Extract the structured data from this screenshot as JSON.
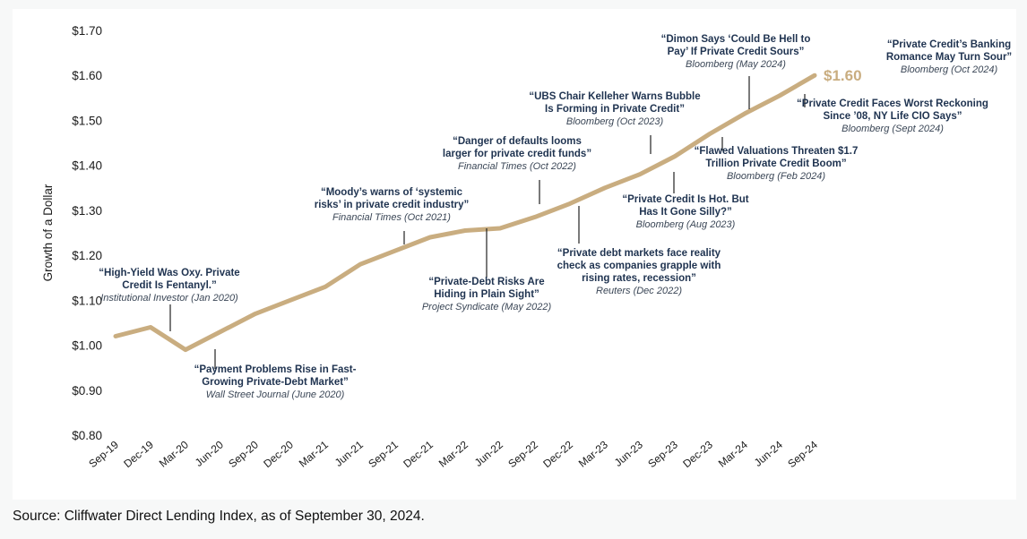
{
  "chart_data": {
    "type": "line",
    "xlabel": "",
    "ylabel": "Growth of a Dollar",
    "ylim": [
      0.8,
      1.7
    ],
    "y_ticks": [
      "$1.70",
      "$1.60",
      "$1.50",
      "$1.40",
      "$1.30",
      "$1.20",
      "$1.10",
      "$1.00",
      "$0.90",
      "$0.80"
    ],
    "categories": [
      "Sep-19",
      "Dec-19",
      "Mar-20",
      "Jun-20",
      "Sep-20",
      "Dec-20",
      "Mar-21",
      "Jun-21",
      "Sep-21",
      "Dec-21",
      "Mar-22",
      "Jun-22",
      "Sep-22",
      "Dec-22",
      "Mar-23",
      "Jun-23",
      "Sep-23",
      "Dec-23",
      "Mar-24",
      "Jun-24",
      "Sep-24"
    ],
    "series": [
      {
        "name": "Cliffwater Direct Lending Index",
        "color": "#c9ad80",
        "values": [
          1.02,
          1.04,
          0.99,
          1.03,
          1.07,
          1.1,
          1.13,
          1.18,
          1.21,
          1.24,
          1.255,
          1.26,
          1.285,
          1.315,
          1.35,
          1.38,
          1.42,
          1.47,
          1.515,
          1.555,
          1.6
        ]
      }
    ],
    "end_label": "$1.60",
    "annotations": [
      {
        "headline": [
          "“High-Yield Was Oxy. Private",
          "Credit Is Fentanyl.”"
        ],
        "source": "Institutional Investor (Jan 2020)"
      },
      {
        "headline": [
          "“Payment Problems Rise in Fast-",
          "Growing Private-Debt Market”"
        ],
        "source": "Wall Street Journal (June 2020)"
      },
      {
        "headline": [
          "“Moody’s warns of ‘systemic",
          "risks’ in private credit industry”"
        ],
        "source": "Financial Times (Oct 2021)"
      },
      {
        "headline": [
          "“Private-Debt Risks Are",
          "Hiding in Plain Sight”"
        ],
        "source": "Project Syndicate (May 2022)"
      },
      {
        "headline": [
          "“Danger of defaults looms",
          "larger for private credit funds”"
        ],
        "source": "Financial Times (Oct 2022)"
      },
      {
        "headline": [
          "“Private debt markets face reality",
          "check as companies grapple with",
          "rising rates, recession”"
        ],
        "source": "Reuters (Dec 2022)"
      },
      {
        "headline": [
          "“UBS Chair Kelleher Warns Bubble",
          "Is Forming in Private Credit”"
        ],
        "source": "Bloomberg (Oct 2023)"
      },
      {
        "headline": [
          "“Private Credit Is Hot. But",
          "Has It Gone Silly?”"
        ],
        "source": "Bloomberg (Aug 2023)"
      },
      {
        "headline": [
          "“Flawed Valuations Threaten $1.7",
          "Trillion Private Credit Boom”"
        ],
        "source": "Bloomberg (Feb 2024)"
      },
      {
        "headline": [
          "“Dimon Says ‘Could Be Hell to",
          "Pay’ If Private Credit Sours”"
        ],
        "source": "Bloomberg (May 2024)"
      },
      {
        "headline": [
          "“Private Credit’s Banking",
          "Romance May Turn Sour”"
        ],
        "source": "Bloomberg (Oct 2024)"
      },
      {
        "headline": [
          "“Private Credit Faces Worst Reckoning",
          "Since ’08, NY Life CIO Says”"
        ],
        "source": "Bloomberg (Sept 2024)"
      }
    ]
  },
  "source_note": "Source: Cliffwater Direct Lending Index, as of September 30, 2024.",
  "colors": {
    "line": "#c9ad80",
    "end_label": "#c9ad80",
    "leader": "#222222"
  }
}
